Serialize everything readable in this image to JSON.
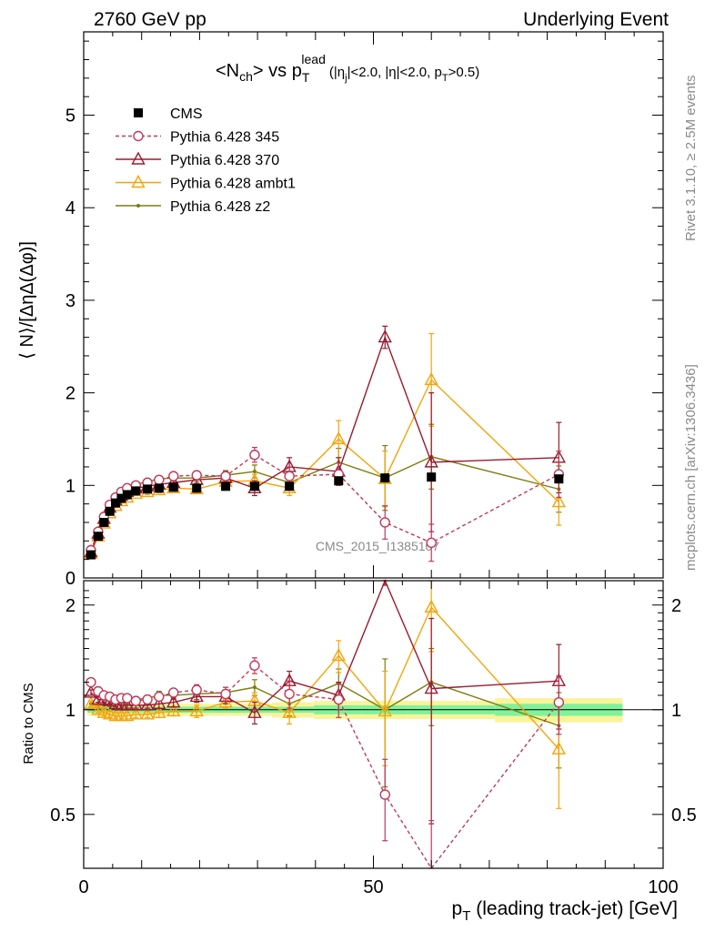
{
  "header": {
    "left": "2760 GeV pp",
    "right": "Underlying Event"
  },
  "side_labels": {
    "top": "Rivet 3.1.10, ≥ 2.5M events",
    "bottom": "mcplots.cern.ch [arXiv:1306.3436]"
  },
  "watermark": "CMS_2015_I1385107",
  "plot_title": {
    "main": "<N",
    "main_sub": "ch",
    "vs": "> vs p",
    "p_sup": "lead",
    "p_sub": "T",
    "cuts": "(|η",
    "cuts_sub1": "j",
    "cuts2": "|<2.0, |η|<2.0, p",
    "cuts_sub2": "T",
    "cuts3": ">0.5)"
  },
  "chart_data": [
    {
      "type": "line",
      "panel": "main",
      "ylabel": "⟨ N⟩/[ΔηΔ(Δφ)]",
      "xlim": [
        0,
        100
      ],
      "ylim": [
        0,
        5.9
      ],
      "yticks": [
        0,
        1,
        2,
        3,
        4,
        5
      ],
      "yticklabels": [
        "0",
        "1",
        "2",
        "3",
        "4",
        "5"
      ],
      "legend_position": "top-left",
      "x": [
        1.25,
        2.5,
        3.5,
        4.5,
        5.5,
        6.5,
        7.5,
        9.0,
        11.0,
        13.0,
        15.5,
        19.5,
        24.5,
        29.5,
        35.5,
        44.0,
        52.0,
        60.0,
        82.0
      ],
      "series": [
        {
          "name": "CMS",
          "color": "#000000",
          "marker": "square",
          "style": "none",
          "values": [
            0.25,
            0.45,
            0.6,
            0.72,
            0.81,
            0.86,
            0.9,
            0.94,
            0.96,
            0.97,
            0.98,
            0.97,
            0.99,
            0.99,
            0.99,
            1.05,
            1.08,
            1.09,
            1.07
          ],
          "err": [
            0.02,
            0.02,
            0.02,
            0.02,
            0.02,
            0.02,
            0.02,
            0.02,
            0.02,
            0.02,
            0.02,
            0.02,
            0.02,
            0.02,
            0.02,
            0.03,
            0.04,
            0.04,
            0.04
          ]
        },
        {
          "name": "Pythia 6.428 345",
          "color": "#c0395a",
          "marker": "circle-open",
          "style": "dashed",
          "values": [
            0.3,
            0.5,
            0.66,
            0.79,
            0.87,
            0.93,
            0.97,
            1.0,
            1.03,
            1.06,
            1.1,
            1.11,
            1.1,
            1.33,
            1.1,
            1.12,
            0.6,
            0.38,
            1.12
          ],
          "err": [
            0.02,
            0.02,
            0.02,
            0.02,
            0.02,
            0.02,
            0.02,
            0.02,
            0.03,
            0.03,
            0.03,
            0.04,
            0.05,
            0.08,
            0.1,
            0.12,
            0.18,
            0.2,
            0.25
          ]
        },
        {
          "name": "Pythia 6.428 370",
          "color": "#9a1b30",
          "marker": "triangle-open",
          "style": "solid",
          "values": [
            0.28,
            0.48,
            0.64,
            0.76,
            0.84,
            0.89,
            0.93,
            0.97,
            0.99,
            1.01,
            1.03,
            1.06,
            1.08,
            0.97,
            1.2,
            1.15,
            2.6,
            1.25,
            1.3
          ],
          "err": [
            0.02,
            0.02,
            0.02,
            0.02,
            0.02,
            0.02,
            0.02,
            0.02,
            0.03,
            0.03,
            0.03,
            0.04,
            0.05,
            0.08,
            0.1,
            0.15,
            0.12,
            0.75,
            0.38
          ]
        },
        {
          "name": "Pythia 6.428 ambt1",
          "color": "#f5a40a",
          "marker": "triangle-open",
          "style": "solid",
          "values": [
            0.26,
            0.45,
            0.59,
            0.7,
            0.78,
            0.83,
            0.87,
            0.91,
            0.93,
            0.95,
            0.97,
            0.96,
            1.04,
            1.05,
            0.97,
            1.5,
            1.07,
            2.14,
            0.82
          ],
          "err": [
            0.02,
            0.02,
            0.02,
            0.02,
            0.02,
            0.02,
            0.02,
            0.02,
            0.03,
            0.03,
            0.03,
            0.04,
            0.05,
            0.07,
            0.08,
            0.2,
            0.3,
            0.5,
            0.25
          ]
        },
        {
          "name": "Pythia 6.428 z2",
          "color": "#7d7d0e",
          "marker": "dot",
          "style": "solid",
          "values": [
            0.27,
            0.46,
            0.62,
            0.75,
            0.84,
            0.9,
            0.95,
            1.01,
            1.04,
            1.07,
            1.08,
            1.08,
            1.11,
            1.15,
            1.03,
            1.25,
            1.08,
            1.31,
            0.96
          ],
          "err": [
            0.02,
            0.02,
            0.02,
            0.02,
            0.02,
            0.02,
            0.02,
            0.02,
            0.03,
            0.03,
            0.03,
            0.04,
            0.05,
            0.07,
            0.08,
            0.15,
            0.35,
            0.35,
            0.25
          ]
        }
      ]
    },
    {
      "type": "line",
      "panel": "ratio",
      "ylabel": "Ratio to CMS",
      "xlabel": "p",
      "xlabel_sub": "T",
      "xlabel_rest": " (leading track-jet) [GeV]",
      "xlim": [
        0,
        100
      ],
      "xticks": [
        0,
        50,
        100
      ],
      "xticklabels": [
        "0",
        "50",
        "100"
      ],
      "ylim": [
        0.35,
        2.35
      ],
      "yticks": [
        0.5,
        1,
        2
      ],
      "yticklabels": [
        "0.5",
        "1",
        "2"
      ],
      "band_colors": {
        "inner": "#7ff29a",
        "outer": "#fbf39a"
      },
      "x": [
        1.25,
        2.5,
        3.5,
        4.5,
        5.5,
        6.5,
        7.5,
        9.0,
        11.0,
        13.0,
        15.5,
        19.5,
        24.5,
        29.5,
        35.5,
        44.0,
        52.0,
        60.0,
        82.0
      ],
      "band_inner": [
        0.02,
        0.02,
        0.02,
        0.02,
        0.02,
        0.02,
        0.02,
        0.02,
        0.02,
        0.02,
        0.02,
        0.02,
        0.02,
        0.02,
        0.02,
        0.03,
        0.03,
        0.03,
        0.04
      ],
      "band_outer": [
        0.04,
        0.04,
        0.04,
        0.04,
        0.04,
        0.04,
        0.04,
        0.04,
        0.04,
        0.04,
        0.04,
        0.04,
        0.04,
        0.04,
        0.05,
        0.06,
        0.06,
        0.06,
        0.08
      ],
      "series": [
        {
          "name": "Pythia 6.428 345",
          "color": "#c0395a",
          "marker": "circle-open",
          "style": "dashed",
          "values": [
            1.2,
            1.13,
            1.1,
            1.09,
            1.07,
            1.08,
            1.08,
            1.06,
            1.07,
            1.09,
            1.12,
            1.14,
            1.11,
            1.34,
            1.11,
            1.07,
            0.57,
            0.33,
            1.05
          ],
          "err": [
            0.02,
            0.02,
            0.02,
            0.02,
            0.02,
            0.02,
            0.02,
            0.02,
            0.02,
            0.03,
            0.03,
            0.04,
            0.05,
            0.07,
            0.1,
            0.12,
            0.15,
            0.15,
            0.2
          ]
        },
        {
          "name": "Pythia 6.428 370",
          "color": "#9a1b30",
          "marker": "triangle-open",
          "style": "solid",
          "values": [
            1.12,
            1.07,
            1.07,
            1.06,
            1.04,
            1.03,
            1.03,
            1.03,
            1.03,
            1.04,
            1.05,
            1.09,
            1.09,
            0.98,
            1.21,
            1.1,
            2.38,
            1.15,
            1.21
          ],
          "err": [
            0.02,
            0.02,
            0.02,
            0.02,
            0.02,
            0.02,
            0.02,
            0.02,
            0.02,
            0.03,
            0.03,
            0.04,
            0.05,
            0.07,
            0.08,
            0.1,
            0.1,
            0.68,
            0.33
          ]
        },
        {
          "name": "Pythia 6.428 ambt1",
          "color": "#f5a40a",
          "marker": "triangle-open",
          "style": "solid",
          "values": [
            1.04,
            1.0,
            0.98,
            0.97,
            0.96,
            0.96,
            0.96,
            0.97,
            0.97,
            0.98,
            0.99,
            0.99,
            1.05,
            1.06,
            0.98,
            1.43,
            0.99,
            1.97,
            0.77
          ],
          "err": [
            0.02,
            0.02,
            0.02,
            0.02,
            0.02,
            0.02,
            0.02,
            0.02,
            0.02,
            0.03,
            0.03,
            0.04,
            0.04,
            0.06,
            0.07,
            0.15,
            0.3,
            0.5,
            0.25
          ]
        },
        {
          "name": "Pythia 6.428 z2",
          "color": "#7d7d0e",
          "marker": "dot",
          "style": "solid",
          "values": [
            1.04,
            1.03,
            1.03,
            1.04,
            1.04,
            1.05,
            1.06,
            1.07,
            1.08,
            1.1,
            1.1,
            1.11,
            1.12,
            1.16,
            1.04,
            1.19,
            1.0,
            1.2,
            0.9
          ],
          "err": [
            0.02,
            0.02,
            0.02,
            0.02,
            0.02,
            0.02,
            0.02,
            0.02,
            0.02,
            0.03,
            0.03,
            0.04,
            0.04,
            0.06,
            0.08,
            0.12,
            0.4,
            0.3,
            0.22
          ]
        }
      ]
    }
  ]
}
